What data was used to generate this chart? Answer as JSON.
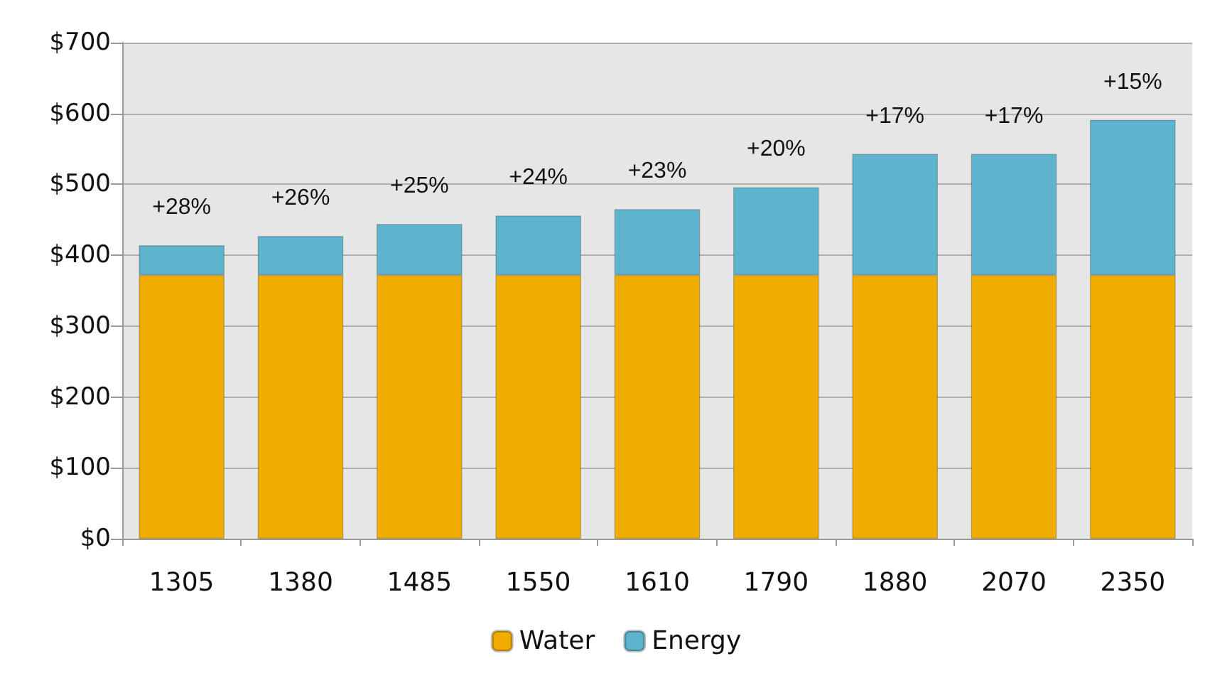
{
  "chart_data": {
    "type": "bar",
    "stacked": true,
    "categories": [
      "1305",
      "1380",
      "1485",
      "1550",
      "1610",
      "1790",
      "1880",
      "2070",
      "2350"
    ],
    "series": [
      {
        "name": "Water",
        "color": "#f0ad00",
        "values": [
          372,
          372,
          372,
          372,
          372,
          372,
          372,
          372,
          372
        ]
      },
      {
        "name": "Energy",
        "color": "#5eb4cc",
        "values": [
          42,
          55,
          72,
          84,
          93,
          124,
          171,
          171,
          219
        ]
      }
    ],
    "annotations": [
      {
        "text": "+28%",
        "x": "1305",
        "y": 414
      },
      {
        "text": "+26%",
        "x": "1380",
        "y": 427
      },
      {
        "text": "+25%",
        "x": "1485",
        "y": 444
      },
      {
        "text": "+24%",
        "x": "1550",
        "y": 456
      },
      {
        "text": "+23%",
        "x": "1610",
        "y": 465
      },
      {
        "text": "+20%",
        "x": "1790",
        "y": 496
      },
      {
        "text": "+17%",
        "x": "1880",
        "y": 543
      },
      {
        "text": "+17%",
        "x": "2070",
        "y": 543
      },
      {
        "text": "+15%",
        "x": "2350",
        "y": 591
      }
    ],
    "ylim": [
      0,
      700
    ],
    "yticks": [
      {
        "value": 0,
        "label": "$0"
      },
      {
        "value": 100,
        "label": "$100"
      },
      {
        "value": 200,
        "label": "$200"
      },
      {
        "value": 300,
        "label": "$300"
      },
      {
        "value": 400,
        "label": "$400"
      },
      {
        "value": 500,
        "label": "$500"
      },
      {
        "value": 600,
        "label": "$600"
      },
      {
        "value": 700,
        "label": "$700"
      }
    ],
    "grid": "y",
    "legend": "bottom"
  }
}
